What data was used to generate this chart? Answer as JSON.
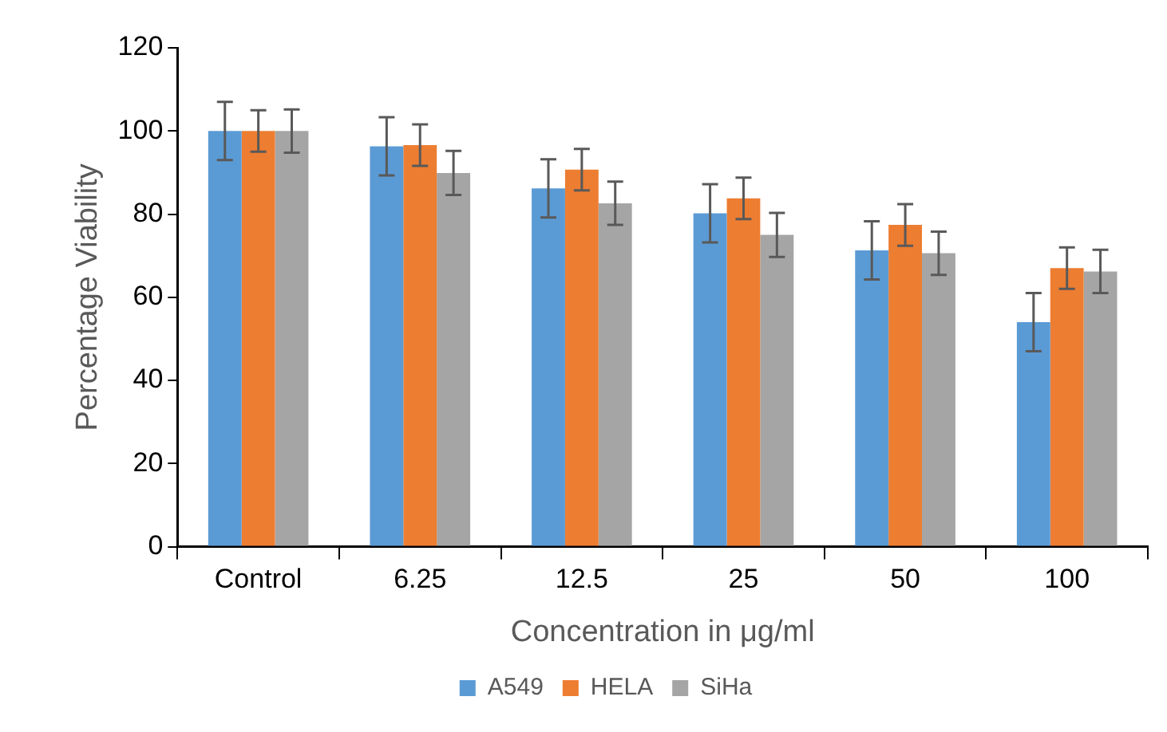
{
  "chart_data": {
    "type": "bar",
    "xlabel": "Concentration in μg/ml",
    "ylabel": "Percentage Viability",
    "categories": [
      "Control",
      "6.25",
      "12.5",
      "25",
      "50",
      "100"
    ],
    "series": [
      {
        "name": "A549",
        "color": "#5b9bd5",
        "values": [
          100,
          96.3,
          86.2,
          80.2,
          71.3,
          54
        ],
        "errors": [
          7,
          7,
          7,
          7,
          7,
          7
        ]
      },
      {
        "name": "HELA",
        "color": "#ed7d31",
        "values": [
          100,
          96.6,
          90.7,
          83.8,
          77.4,
          67
        ],
        "errors": [
          5,
          5,
          5,
          5,
          5,
          5
        ]
      },
      {
        "name": "SiHa",
        "color": "#a5a5a5",
        "values": [
          100,
          89.9,
          82.6,
          75,
          70.6,
          66.2
        ],
        "errors": [
          5.2,
          5.3,
          5.2,
          5.3,
          5.2,
          5.2
        ]
      }
    ],
    "ylim": [
      0,
      120
    ],
    "yticks": [
      0,
      20,
      40,
      60,
      80,
      100,
      120
    ],
    "grid": false,
    "legend": "bottom"
  }
}
